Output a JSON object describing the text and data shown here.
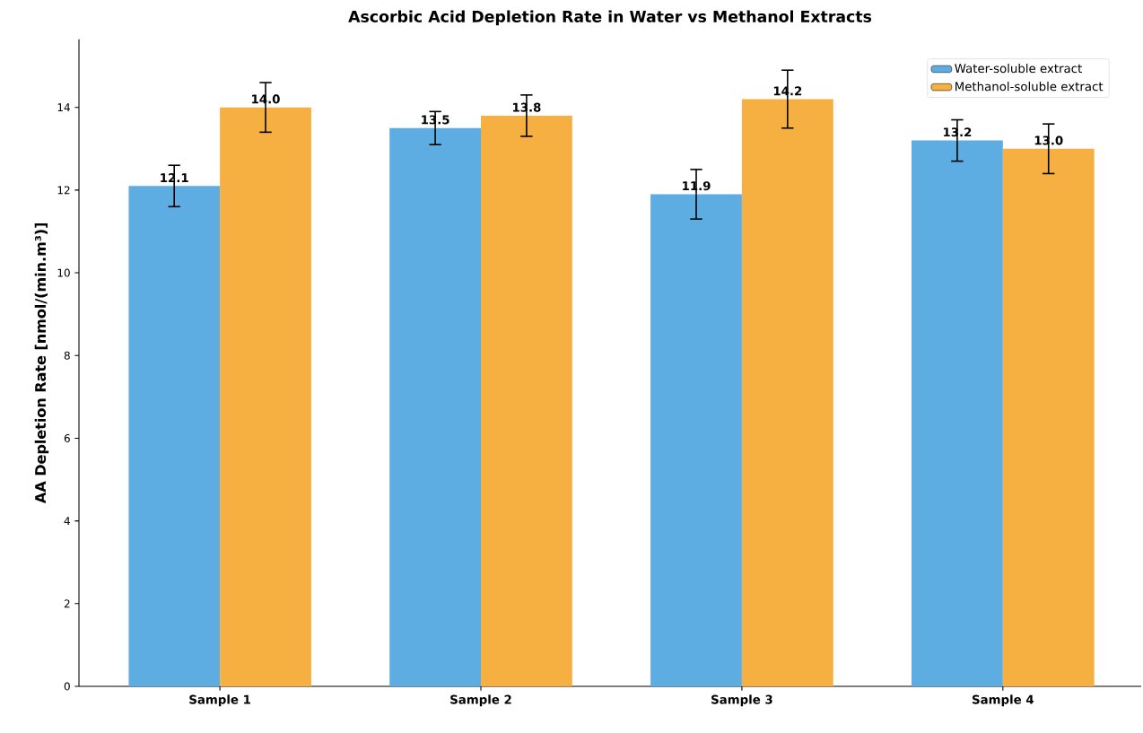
{
  "chart_data": {
    "type": "bar",
    "title": "Ascorbic Acid Depletion Rate in Water vs Methanol Extracts",
    "ylabel": "AA Depletion Rate [nmol/(min.m³)]",
    "categories": [
      "Sample 1",
      "Sample 2",
      "Sample 3",
      "Sample 4"
    ],
    "series": [
      {
        "name": "Water-soluble extract",
        "color": "#5dade2",
        "values": [
          12.1,
          13.5,
          11.9,
          13.2
        ],
        "value_labels": [
          "12.1",
          "13.5",
          "11.9",
          "13.2"
        ],
        "errors": [
          0.5,
          0.4,
          0.6,
          0.5
        ]
      },
      {
        "name": "Methanol-soluble extract",
        "color": "#f5b041",
        "values": [
          14.0,
          13.8,
          14.2,
          13.0
        ],
        "value_labels": [
          "14.0",
          "13.8",
          "14.2",
          "13.0"
        ],
        "errors": [
          0.6,
          0.5,
          0.7,
          0.6
        ]
      }
    ],
    "ylim": [
      0,
      15.65
    ],
    "yticks": [
      0,
      2,
      4,
      6,
      8,
      10,
      12,
      14
    ],
    "grid": false,
    "legend": "top right"
  }
}
